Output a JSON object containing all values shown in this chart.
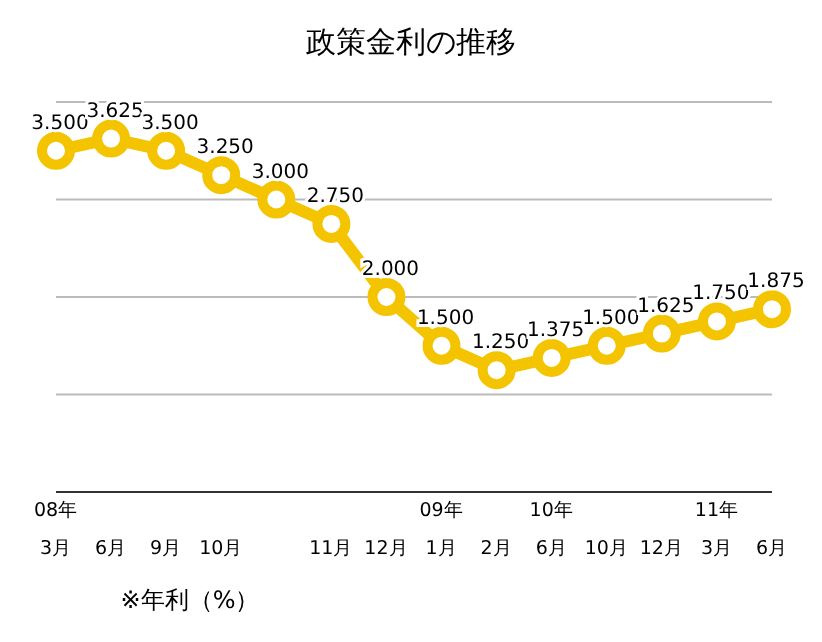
{
  "chart_data": {
    "type": "line",
    "title": "政策金利の推移",
    "categories": [
      "08年\n3月",
      "6月",
      "9月",
      "10月",
      null,
      "11月",
      "12月",
      "09年\n1月",
      "2月",
      "10年\n6月",
      "10月",
      "12月",
      "11年\n3月",
      "6月"
    ],
    "series": [
      {
        "color": "#f5c400",
        "values": [
          3.5,
          3.625,
          3.5,
          3.25,
          3.0,
          2.75,
          2.0,
          1.5,
          1.25,
          1.375,
          1.5,
          1.625,
          1.75,
          1.875
        ],
        "value_labels": [
          "3.500",
          "3.625",
          "3.500",
          "3.250",
          "3.000",
          "2.750",
          "2.000",
          "1.500",
          "1.250",
          "1.375",
          "1.500",
          "1.625",
          "1.750",
          "1.875"
        ]
      }
    ],
    "ylim": [
      0,
      4
    ],
    "yticks": [
      {
        "value": 0,
        "label": null
      },
      {
        "value": 1,
        "label": null
      },
      {
        "value": 2,
        "label": null
      },
      {
        "value": 3,
        "label": null
      },
      {
        "value": 4,
        "label": null
      }
    ],
    "tick_labels": "x",
    "grid": "y",
    "marker": "circle",
    "line_style": "solid",
    "annotations": [
      "※年利（%）"
    ]
  }
}
